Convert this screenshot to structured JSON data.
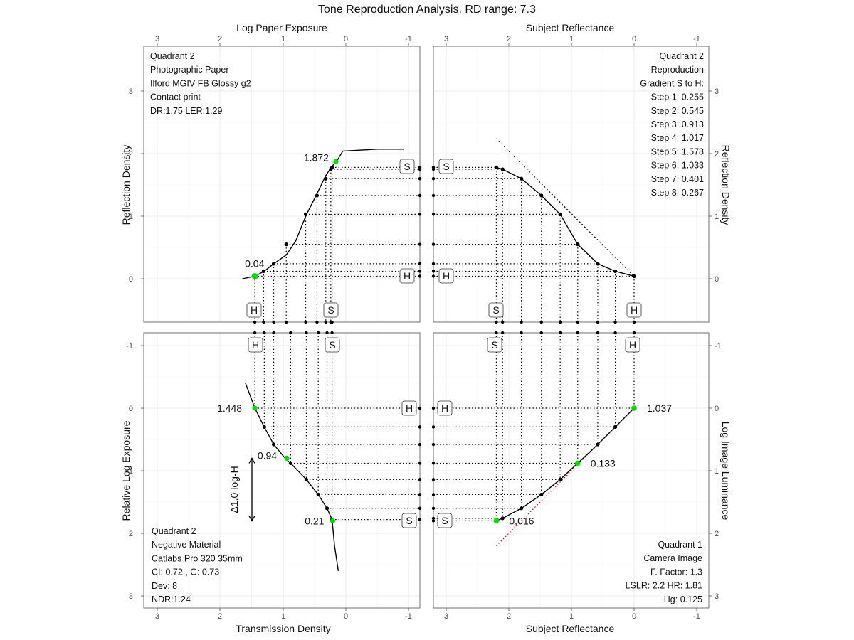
{
  "title": "Tone Reproduction Analysis. RD range: 7.3",
  "axes": {
    "top_left": "Log Paper Exposure",
    "top_right": "Subject Reflectance",
    "bottom_left": "Transmission Density",
    "bottom_right": "Subject Reflectance",
    "left_top": "Reflection Density",
    "left_bottom": "Relative Log Exposure",
    "right_top": "Reflection Density",
    "right_bottom": "Log Image Luminance"
  },
  "ticks": {
    "x": [
      "3",
      "2",
      "1",
      "0",
      "-1"
    ],
    "y_top": [
      "0",
      "1",
      "2",
      "3"
    ],
    "y_bottom": [
      "-1",
      "0",
      "1",
      "2",
      "3"
    ]
  },
  "boxes": {
    "shadow": "S",
    "highlight": "H"
  },
  "notes": {
    "q_tl": [
      "Quadrant 2",
      "Photographic Paper",
      "Ilford MGIV FB Glossy g2",
      "Contact print",
      "DR:1.75 LER:1.29"
    ],
    "q_tr": [
      "Quadrant 2",
      "Reproduction",
      "Gradient S to H:",
      "Step 1: 0.255",
      "Step 2: 0.545",
      "Step 3: 0.913",
      "Step 4: 1.017",
      "Step 5: 1.578",
      "Step 6: 1.033",
      "Step 7: 0.401",
      "Step 8: 0.267"
    ],
    "q_bl": [
      "Quadrant 2",
      "Negative Material",
      "Catlabs Pro 320 35mm",
      "CI: 0.72 , G: 0.73",
      "Dev: 8",
      "NDR:1.24"
    ],
    "q_br": [
      "Quadrant 1",
      "Camera Image",
      "F. Factor: 1.3",
      "LSLR: 2.2  HR: 1.81",
      "Hg: 0.125"
    ]
  },
  "labels": {
    "paper_shadow": "1.872",
    "paper_highlight": "0.04",
    "neg_highlight": "1.448",
    "neg_mid": "0.94",
    "neg_shadow": "0.21",
    "cam_highlight": "1.037",
    "cam_mid": "0.133",
    "cam_shadow": "0,016",
    "delta": "Δ1.0 log-H"
  },
  "chart_data": [
    {
      "panel": "top-left",
      "type": "line",
      "xlabel": "Log Paper Exposure",
      "ylabel": "Reflection Density",
      "xlim": [
        3.2,
        -1.2
      ],
      "ylim": [
        -0.7,
        3.7
      ],
      "x_reversed": true,
      "curve": {
        "x": [
          1.65,
          1.45,
          1.3,
          1.15,
          0.95,
          0.8,
          0.63,
          0.45,
          0.32,
          0.22,
          0.15,
          0.05,
          -0.5,
          -0.92
        ],
        "y": [
          0.0,
          0.04,
          0.12,
          0.24,
          0.38,
          0.6,
          1.02,
          1.38,
          1.65,
          1.8,
          1.872,
          2.04,
          2.07,
          2.07
        ]
      },
      "points": {
        "x": [
          1.45,
          1.31,
          1.15,
          0.95,
          0.64,
          0.46,
          0.32,
          0.24,
          0.22
        ],
        "y": [
          0.04,
          0.12,
          0.24,
          0.55,
          1.03,
          1.33,
          1.6,
          1.75,
          1.78
        ]
      },
      "highlight_points": [
        {
          "x": 1.45,
          "y": 0.04
        },
        {
          "x": 0.16,
          "y": 1.872
        }
      ]
    },
    {
      "panel": "top-right",
      "type": "line",
      "xlabel": "Subject Reflectance",
      "ylabel": "Reflection Density",
      "xlim": [
        3.2,
        -1.2
      ],
      "ylim": [
        -0.7,
        3.7
      ],
      "x_reversed": true,
      "curve": {
        "x": [
          2.2,
          2.1,
          1.8,
          1.48,
          1.18,
          0.9,
          0.58,
          0.3,
          0.0
        ],
        "y": [
          1.78,
          1.75,
          1.6,
          1.33,
          1.03,
          0.55,
          0.24,
          0.12,
          0.04
        ]
      },
      "reference_line": {
        "x": [
          2.2,
          0.0
        ],
        "y": [
          2.24,
          0.04
        ]
      }
    },
    {
      "panel": "bottom-left",
      "type": "line",
      "xlabel": "Transmission Density",
      "ylabel": "Relative Log Exposure",
      "xlim": [
        3.2,
        -1.2
      ],
      "ylim": [
        3.3,
        -1.3
      ],
      "x_reversed": true,
      "y_reversed": true,
      "curve": {
        "x": [
          1.6,
          1.45,
          1.3,
          1.15,
          0.95,
          0.88,
          0.63,
          0.44,
          0.3,
          0.22,
          0.18,
          0.12
        ],
        "y": [
          -0.4,
          0.0,
          0.3,
          0.58,
          0.82,
          0.88,
          1.14,
          1.38,
          1.6,
          1.78,
          2.2,
          2.6
        ]
      },
      "points": {
        "x": [
          1.45,
          1.3,
          1.15,
          0.88,
          0.63,
          0.44,
          0.3,
          0.22
        ],
        "y": [
          0.0,
          0.3,
          0.58,
          0.88,
          1.14,
          1.38,
          1.6,
          1.78
        ]
      },
      "highlight_points": [
        {
          "x": 1.45,
          "y": 0.0
        },
        {
          "x": 0.94,
          "y": 0.8
        },
        {
          "x": 0.21,
          "y": 1.8
        }
      ]
    },
    {
      "panel": "bottom-right",
      "type": "line",
      "xlabel": "Subject Reflectance",
      "ylabel": "Log Image Luminance",
      "xlim": [
        3.2,
        -1.2
      ],
      "ylim": [
        3.3,
        -1.3
      ],
      "x_reversed": true,
      "y_reversed": true,
      "curve": {
        "x": [
          2.2,
          2.1,
          1.8,
          1.48,
          1.18,
          0.9,
          0.58,
          0.3,
          0.0
        ],
        "y": [
          1.8,
          1.76,
          1.6,
          1.38,
          1.14,
          0.88,
          0.58,
          0.3,
          0.0
        ]
      },
      "reference_line": {
        "x": [
          2.2,
          0.0
        ],
        "y": [
          2.2,
          0.0
        ]
      },
      "highlight_points": [
        {
          "x": 2.2,
          "y": 1.8
        },
        {
          "x": 0.9,
          "y": 0.88
        },
        {
          "x": 0.0,
          "y": 0.0
        }
      ]
    }
  ]
}
